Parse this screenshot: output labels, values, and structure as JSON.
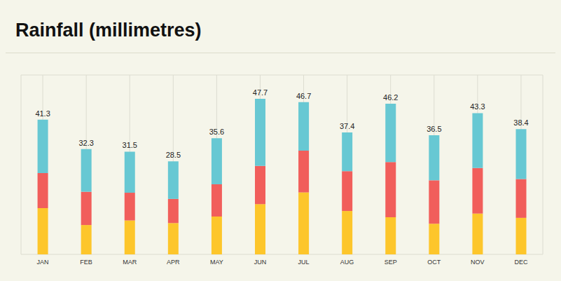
{
  "chart_data": {
    "type": "bar",
    "title": "Rainfall (millimetres)",
    "categories": [
      "JAN",
      "FEB",
      "MAR",
      "APR",
      "MAY",
      "JUN",
      "JUL",
      "AUG",
      "SEP",
      "OCT",
      "NOV",
      "DEC"
    ],
    "series": [
      {
        "color": "#fdc62b",
        "values": [
          14.2,
          9.0,
          10.4,
          9.6,
          11.6,
          15.4,
          19.0,
          13.3,
          11.4,
          9.4,
          12.5,
          11.2
        ]
      },
      {
        "color": "#f15e5b",
        "values": [
          10.7,
          10.2,
          8.5,
          7.4,
          9.9,
          11.7,
          12.8,
          12.2,
          16.9,
          13.3,
          14.0,
          11.9
        ]
      },
      {
        "color": "#67c8d3",
        "values": [
          16.4,
          13.1,
          12.6,
          11.5,
          14.1,
          20.6,
          14.9,
          11.9,
          17.9,
          13.8,
          16.8,
          15.3
        ]
      }
    ],
    "totals": [
      41.3,
      32.3,
      31.5,
      28.5,
      35.6,
      47.7,
      46.7,
      37.4,
      46.2,
      36.5,
      43.3,
      38.4
    ],
    "stacked": true,
    "grid": true,
    "tick_labels": "x",
    "ylim": [
      0,
      55
    ],
    "yticks": [
      0,
      5,
      10,
      15,
      20,
      25,
      30,
      35,
      40,
      45,
      50,
      55
    ]
  }
}
